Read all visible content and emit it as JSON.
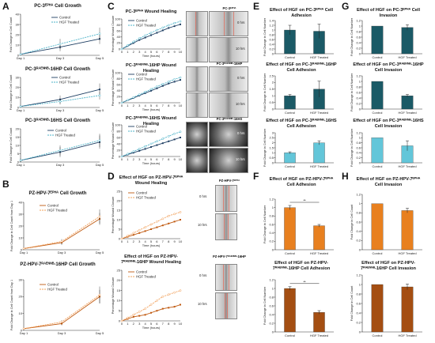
{
  "figure": {
    "panels": {
      "A": "A",
      "B": "B",
      "C": "C",
      "D": "D",
      "E": "E",
      "F": "F",
      "G": "G",
      "H": "H"
    },
    "colors": {
      "blue_dark": "#1f3f63",
      "blue_light": "#4db3c9",
      "orange_dark": "#c0590f",
      "orange_light": "#f2a05a",
      "teal_bar": "#1b5a66",
      "lightblue_bar": "#63c6d9",
      "orange_bar": "#e8801f",
      "brown_bar": "#a44e12"
    },
    "legend": {
      "control": "Control",
      "hgf": "HGF Treated"
    },
    "panelA": {
      "titles": [
        "PC-3ᴱᴾᴴᴬ Cell Growth",
        "PC-3ᴿᴬᴱᴺᴺᴮ-16HP Cell Growth",
        "PC-3ᴿᴬᴱᴺᴺᴮ-16HS Cell Growth"
      ],
      "ylabel": "Fold Change in Cell Count",
      "xticks": [
        "Day 1",
        "Day 3",
        "Day 5"
      ]
    },
    "panelB": {
      "titles": [
        "PZ-HPV-7ᴱᴾᴴᴬ Cell Growth",
        "PZ-HPV-7ᴿᴬᴱᴺᴺᴮ-16HP Cell Growth"
      ],
      "ylabel": "Fold Change in Cell Count from Day 1",
      "xticks": [
        "Day 1",
        "Day 3",
        "Day 5"
      ]
    },
    "panelC": {
      "titles": [
        "PC-3ᴱᴾᴴᴬ Wound Healing",
        "PC-3ᴿᴬᴱᴺᴺᴮ-16HP Wound Healing",
        "PC-3ᴿᴬᴱᴺᴺᴮ-16HS Wound Healing"
      ],
      "ylabel": "Percentage Wound Closure",
      "xlabel": "Time (hours)",
      "xticks": [
        "0",
        "1",
        "2",
        "3",
        "4",
        "5",
        "6",
        "7",
        "8",
        "9",
        "10"
      ],
      "image_headers": [
        "PC-3ᴱᴾᴴᴬ",
        "PC-3ᴿᴬᴱᴺᴺᴮ-16HP",
        "PC-3ᴿᴬᴱᴺᴺᴮ-16HS"
      ],
      "time_labels": [
        "0 hrs",
        "10 hrs"
      ]
    },
    "panelD": {
      "titles": [
        "Effect of HGF on PZ-HPV-7ᴱᴾᴴᴬ Wound Healing",
        "Effect of HGF on PZ-HPV-7ᴿᴬᴱᴺᴺᴮ-16HP Wound Healing"
      ],
      "ylabel": "Percentage Wound Closure",
      "xlabel": "Time (hours)",
      "image_headers": [
        "PZ-HPV-7ᴱᴾᴴᴬ",
        "PZ-HPV-7ᴿᴬᴱᴺᴺᴮ-16HP"
      ],
      "time_labels": [
        "0 hrs",
        "10 hrs"
      ]
    },
    "panelE": {
      "titles": [
        "Effect of HGF on PC-3ᴱᴾᴴᴬ Cell Adhesion",
        "Effect of HGF on PC-3ᴿᴬᴱᴺᴺᴮ-16HP Cell Adhesion",
        "Effect of HGF on PC-3ᴿᴬᴱᴺᴺᴮ-16HS Cell Adhesion"
      ],
      "ylabel": "Fold Change in Cell Number",
      "cats": [
        "Control",
        "HGF Treated"
      ]
    },
    "panelF": {
      "titles": [
        "Effect of HGF on PZ-HPV-7ᴱᴾᴴᴬ Cell Adhesion",
        "Effect of HGF on PZ-HPV-7ᴿᴬᴱᴺᴺᴮ-16HP Cell Adhesion"
      ],
      "ylabel": "Fold Change in Cell Number",
      "cats": [
        "Control",
        "HGF Treated"
      ],
      "sig": "**"
    },
    "panelG": {
      "titles": [
        "Effect of HGF on PC-3ᴱᴾᴴᴬ Cell Invasion",
        "Effect of HGF on PC-3ᴿᴬᴱᴺᴺᴮ-16HP Cell Invasion",
        "Effect of HGF on PC-3ᴿᴬᴱᴺᴺᴮ-16HS Cell Invasion"
      ],
      "ylabel": "Fold Change in Cell Number",
      "cats": [
        "Control",
        "HGF Treated"
      ]
    },
    "panelH": {
      "titles": [
        "Effect of HGF on PZ-HPV-7ᴱᴾᴴᴬ Cell Invasion",
        "Effect of HGF on PZ-HPV-7ᴿᴬᴱᴺᴺᴮ-16HP Cell Invasion"
      ],
      "ylabel": "Fold Change in Cell Count",
      "cats": [
        "Control",
        "HGF Treated"
      ]
    }
  },
  "chart_data": [
    {
      "id": "A1",
      "type": "line",
      "x": [
        "Day 1",
        "Day 3",
        "Day 5"
      ],
      "ylim": [
        0,
        40
      ],
      "yticks": [
        0,
        10,
        20,
        30,
        40
      ],
      "series": [
        {
          "name": "Control",
          "values": [
            1,
            8,
            16
          ],
          "err": [
            1,
            4,
            5
          ]
        },
        {
          "name": "HGF Treated",
          "values": [
            1,
            11,
            21
          ],
          "err": [
            1,
            5,
            6
          ]
        }
      ]
    },
    {
      "id": "A2",
      "type": "line",
      "x": [
        "Day 1",
        "Day 3",
        "Day 5"
      ],
      "ylim": [
        0,
        30
      ],
      "yticks": [
        0,
        10,
        20,
        30
      ],
      "series": [
        {
          "name": "Control",
          "values": [
            1,
            8,
            18
          ],
          "err": [
            1,
            4,
            6
          ]
        },
        {
          "name": "HGF Treated",
          "values": [
            1,
            6,
            12
          ],
          "err": [
            1,
            3,
            4
          ]
        }
      ]
    },
    {
      "id": "A3",
      "type": "line",
      "x": [
        "Day 1",
        "Day 3",
        "Day 5"
      ],
      "ylim": [
        0,
        20
      ],
      "yticks": [
        0,
        5,
        10,
        15,
        20
      ],
      "series": [
        {
          "name": "Control",
          "values": [
            1,
            6,
            12
          ],
          "err": [
            1,
            3,
            4
          ]
        },
        {
          "name": "HGF Treated",
          "values": [
            1,
            7,
            13
          ],
          "err": [
            1,
            3,
            4
          ]
        }
      ]
    },
    {
      "id": "B1",
      "type": "line",
      "x": [
        "Day 1",
        "Day 3",
        "Day 5"
      ],
      "ylim": [
        0,
        40
      ],
      "yticks": [
        0,
        10,
        20,
        30,
        40
      ],
      "series": [
        {
          "name": "Control",
          "values": [
            1,
            6,
            26
          ],
          "err": [
            0,
            2,
            5
          ]
        },
        {
          "name": "HGF Treated",
          "values": [
            1,
            7,
            28
          ],
          "err": [
            0,
            2,
            6
          ]
        }
      ]
    },
    {
      "id": "B2",
      "type": "line",
      "x": [
        "Day 1",
        "Day 3",
        "Day 5"
      ],
      "ylim": [
        0,
        30
      ],
      "yticks": [
        0,
        10,
        20,
        30
      ],
      "series": [
        {
          "name": "Control",
          "values": [
            1,
            4,
            20
          ],
          "err": [
            0,
            1,
            4
          ]
        },
        {
          "name": "HGF Treated",
          "values": [
            1,
            5,
            21
          ],
          "err": [
            0,
            1,
            5
          ]
        }
      ]
    },
    {
      "id": "C1",
      "type": "line",
      "x": [
        0,
        1,
        2,
        3,
        4,
        5,
        6,
        7,
        8,
        9,
        10
      ],
      "ylim": [
        0,
        100
      ],
      "yticks": [
        0,
        20,
        40,
        60,
        80,
        100
      ],
      "series": [
        {
          "name": "Control",
          "values": [
            0,
            10,
            20,
            30,
            38,
            46,
            54,
            62,
            70,
            76,
            82
          ]
        },
        {
          "name": "HGF Treated",
          "values": [
            0,
            12,
            24,
            35,
            45,
            54,
            63,
            71,
            79,
            86,
            92
          ]
        }
      ]
    },
    {
      "id": "C2",
      "type": "line",
      "x": [
        0,
        1,
        2,
        3,
        4,
        5,
        6,
        7,
        8,
        9,
        10
      ],
      "ylim": [
        0,
        100
      ],
      "yticks": [
        0,
        20,
        40,
        60,
        80,
        100
      ],
      "series": [
        {
          "name": "Control",
          "values": [
            0,
            8,
            16,
            24,
            32,
            40,
            48,
            56,
            64,
            70,
            76
          ]
        },
        {
          "name": "HGF Treated",
          "values": [
            0,
            9,
            18,
            27,
            36,
            45,
            54,
            62,
            70,
            78,
            84
          ]
        }
      ]
    },
    {
      "id": "C3",
      "type": "line",
      "x": [
        0,
        1,
        2,
        3,
        4,
        5,
        6,
        7,
        8,
        9,
        10
      ],
      "ylim": [
        0,
        100
      ],
      "yticks": [
        0,
        20,
        40,
        60,
        80,
        100
      ],
      "series": [
        {
          "name": "Control",
          "values": [
            0,
            6,
            12,
            18,
            24,
            30,
            36,
            42,
            48,
            54,
            60
          ]
        },
        {
          "name": "HGF Treated",
          "values": [
            0,
            8,
            16,
            24,
            32,
            40,
            48,
            56,
            64,
            72,
            78
          ]
        }
      ]
    },
    {
      "id": "D1",
      "type": "line",
      "x": [
        0,
        1,
        2,
        3,
        4,
        5,
        6,
        7,
        8,
        9,
        10
      ],
      "ylim": [
        0,
        25
      ],
      "yticks": [
        0,
        5,
        10,
        15,
        20,
        25
      ],
      "series": [
        {
          "name": "Control",
          "values": [
            0,
            1,
            2,
            3,
            4,
            5,
            6,
            7,
            8,
            9,
            10
          ]
        },
        {
          "name": "HGF Treated",
          "values": [
            0,
            1.5,
            3,
            4.5,
            6,
            7.5,
            9,
            10.5,
            12,
            13,
            14
          ]
        }
      ]
    },
    {
      "id": "D2",
      "type": "line",
      "x": [
        0,
        1,
        2,
        3,
        4,
        5,
        6,
        7,
        8,
        9,
        10
      ],
      "ylim": [
        0,
        25
      ],
      "yticks": [
        0,
        5,
        10,
        15,
        20,
        25
      ],
      "series": [
        {
          "name": "Control",
          "values": [
            0,
            1,
            2,
            2.5,
            3,
            4,
            5,
            6,
            6.5,
            7,
            8
          ]
        },
        {
          "name": "HGF Treated",
          "values": [
            0,
            1.5,
            3,
            4.5,
            6,
            8,
            10,
            12,
            13,
            14,
            15
          ]
        }
      ]
    },
    {
      "id": "E1",
      "type": "bar",
      "categories": [
        "Control",
        "HGF Treated"
      ],
      "values": [
        1,
        0.95
      ],
      "err": [
        0.2,
        0.3
      ],
      "ylim": [
        0,
        1.4
      ],
      "yticks": [
        0,
        0.2,
        0.4,
        0.6,
        0.8,
        1,
        1.2,
        1.4
      ]
    },
    {
      "id": "E2",
      "type": "bar",
      "categories": [
        "Control",
        "HGF Treated"
      ],
      "values": [
        1,
        1.5
      ],
      "err": [
        0.1,
        0.6
      ],
      "ylim": [
        0,
        2.5
      ],
      "yticks": [
        0,
        0.5,
        1,
        1.5,
        2,
        2.5
      ]
    },
    {
      "id": "E3",
      "type": "bar",
      "categories": [
        "Control",
        "HGF Treated"
      ],
      "values": [
        1,
        2
      ],
      "err": [
        0.1,
        0.2
      ],
      "ylim": [
        0,
        3
      ],
      "yticks": [
        0,
        0.5,
        1,
        1.5,
        2,
        2.5,
        3
      ]
    },
    {
      "id": "F1",
      "type": "bar",
      "categories": [
        "Control",
        "HGF Treated"
      ],
      "values": [
        1,
        0.57
      ],
      "err": [
        0.05,
        0.03
      ],
      "ylim": [
        0,
        1.2
      ],
      "yticks": [
        0,
        0.2,
        0.4,
        0.6,
        0.8,
        1,
        1.2
      ]
    },
    {
      "id": "F2",
      "type": "bar",
      "categories": [
        "Control",
        "HGF Treated"
      ],
      "values": [
        1,
        0.45
      ],
      "err": [
        0.04,
        0.04
      ],
      "ylim": [
        0,
        1.2
      ],
      "yticks": [
        0,
        0.2,
        0.4,
        0.6,
        0.8,
        1,
        1.2
      ]
    },
    {
      "id": "G1",
      "type": "bar",
      "categories": [
        "Control",
        "HGF Treated"
      ],
      "values": [
        1,
        0.95
      ],
      "err": [
        0,
        0.1
      ],
      "ylim": [
        0,
        1.2
      ],
      "yticks": [
        0,
        0.2,
        0.4,
        0.6,
        0.8,
        1,
        1.2
      ]
    },
    {
      "id": "G2",
      "type": "bar",
      "categories": [
        "Control",
        "HGF Treated"
      ],
      "values": [
        1,
        0.48
      ],
      "err": [
        0,
        0.05
      ],
      "ylim": [
        0,
        1.2
      ],
      "yticks": [
        0,
        0.2,
        0.4,
        0.6,
        0.8,
        1,
        1.2
      ]
    },
    {
      "id": "G3",
      "type": "bar",
      "categories": [
        "Control",
        "HGF Treated"
      ],
      "values": [
        1,
        0.68
      ],
      "err": [
        0,
        0.2
      ],
      "ylim": [
        0,
        1.2
      ],
      "yticks": [
        0,
        0.2,
        0.4,
        0.6,
        0.8,
        1,
        1.2
      ]
    },
    {
      "id": "H1",
      "type": "bar",
      "categories": [
        "Control",
        "HGF Treated"
      ],
      "values": [
        1,
        0.85
      ],
      "err": [
        0,
        0.05
      ],
      "ylim": [
        0,
        1.2
      ],
      "yticks": [
        0,
        0.2,
        0.4,
        0.6,
        0.8,
        1,
        1.2
      ]
    },
    {
      "id": "H2",
      "type": "bar",
      "categories": [
        "Control",
        "HGF Treated"
      ],
      "values": [
        1,
        0.95
      ],
      "err": [
        0,
        0.06
      ],
      "ylim": [
        0,
        1.2
      ],
      "yticks": [
        0,
        0.2,
        0.4,
        0.6,
        0.8,
        1,
        1.2
      ]
    }
  ]
}
